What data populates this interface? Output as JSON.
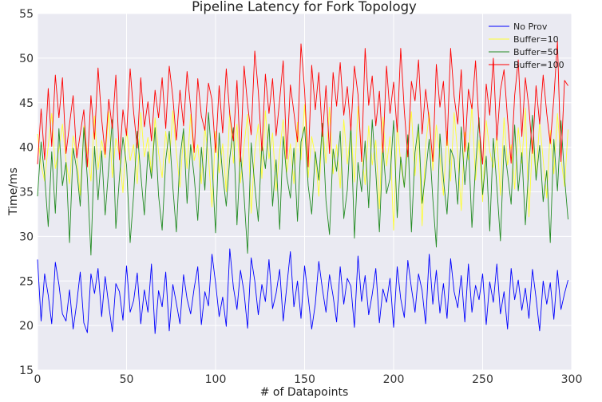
{
  "chart_data": {
    "type": "line",
    "title": "Pipeline Latency for Fork Topology",
    "xlabel": "# of Datapoints",
    "ylabel": "Time/ms",
    "xlim": [
      0,
      300
    ],
    "ylim": [
      15,
      55
    ],
    "xticks": [
      0,
      50,
      100,
      150,
      200,
      250,
      300
    ],
    "yticks": [
      15,
      20,
      25,
      30,
      35,
      40,
      45,
      50,
      55
    ],
    "grid": true,
    "legend_position": "top-right",
    "series": [
      {
        "name": "No Prov",
        "color": "#0000ff",
        "x_start": 0,
        "x_step": 2,
        "values": [
          27.4,
          20.5,
          25.8,
          23.4,
          20.2,
          27.1,
          24.6,
          21.3,
          20.5,
          24.0,
          19.6,
          22.5,
          26.0,
          20.3,
          19.2,
          25.8,
          23.6,
          26.4,
          21.0,
          25.5,
          22.3,
          19.3,
          24.7,
          23.8,
          20.6,
          26.7,
          21.5,
          22.8,
          25.9,
          20.2,
          24.0,
          21.5,
          26.9,
          19.1,
          23.9,
          22.1,
          26.0,
          19.4,
          24.6,
          22.5,
          20.2,
          25.7,
          23.0,
          21.3,
          24.2,
          26.6,
          20.1,
          23.8,
          22.2,
          28.0,
          24.8,
          21.0,
          23.2,
          19.9,
          28.6,
          24.3,
          21.8,
          26.2,
          23.7,
          19.7,
          27.6,
          25.0,
          21.2,
          24.6,
          22.7,
          27.4,
          21.9,
          23.6,
          26.3,
          20.5,
          24.4,
          28.3,
          22.1,
          25.0,
          20.8,
          26.7,
          23.2,
          19.6,
          22.4,
          27.2,
          24.1,
          21.5,
          25.7,
          23.3,
          20.4,
          26.6,
          22.4,
          25.3,
          24.4,
          19.8,
          27.8,
          22.7,
          25.6,
          21.2,
          23.5,
          26.4,
          20.3,
          24.1,
          22.6,
          25.3,
          19.8,
          26.6,
          23.0,
          20.9,
          27.3,
          24.2,
          21.5,
          25.8,
          23.9,
          20.2,
          28.0,
          22.4,
          26.2,
          21.4,
          24.7,
          20.8,
          27.5,
          23.8,
          22.0,
          25.6,
          20.4,
          26.9,
          21.5,
          24.5,
          22.9,
          25.8,
          20.1,
          24.9,
          22.6,
          26.9,
          21.3,
          23.8,
          19.6,
          26.4,
          22.9,
          25.1,
          21.7,
          24.2,
          20.8,
          26.3,
          23.1,
          19.4,
          25.0,
          22.4,
          24.8,
          20.7,
          26.2,
          21.8,
          23.6,
          25.1
        ]
      },
      {
        "name": "Buffer=10",
        "color": "#ffff33",
        "x_start": 0,
        "x_step": 2,
        "values": [
          41.5,
          38.0,
          36.2,
          40.2,
          43.8,
          37.6,
          39.8,
          42.6,
          38.4,
          35.9,
          41.3,
          39.1,
          34.6,
          42.4,
          39.5,
          36.2,
          43.5,
          37.5,
          40.8,
          38.8,
          44.0,
          36.6,
          41.0,
          39.1,
          34.9,
          42.1,
          38.5,
          40.3,
          35.9,
          43.9,
          38.9,
          41.1,
          37.1,
          43.3,
          39.4,
          36.6,
          41.8,
          38.2,
          44.1,
          39.4,
          35.5,
          41.6,
          37.6,
          43.7,
          38.5,
          40.3,
          35.9,
          42.3,
          38.9,
          33.3,
          41.8,
          37.1,
          40.4,
          35.0,
          44.1,
          38.2,
          42.6,
          36.0,
          40.2,
          43.7,
          32.6,
          39.5,
          42.6,
          36.5,
          44.1,
          38.7,
          41.6,
          35.1,
          39.5,
          43.1,
          37.2,
          40.4,
          35.9,
          42.8,
          38.6,
          44.8,
          36.6,
          41.2,
          39.0,
          34.5,
          42.4,
          38.2,
          44.5,
          37.0,
          40.3,
          35.4,
          43.1,
          38.1,
          42.1,
          36.1,
          44.6,
          39.3,
          35.8,
          42.4,
          38.0,
          40.8,
          33.1,
          43.4,
          37.9,
          41.2,
          30.7,
          42.6,
          38.2,
          35.5,
          40.3,
          44.0,
          36.8,
          41.9,
          31.2,
          40.2,
          43.9,
          37.4,
          42.5,
          39.0,
          34.6,
          41.8,
          36.2,
          43.9,
          39.2,
          32.9,
          41.7,
          38.6,
          44.8,
          36.3,
          40.8,
          33.9,
          43.0,
          39.6,
          37.7,
          41.5,
          34.6,
          43.3,
          38.0,
          40.3,
          35.3,
          42.2,
          38.2,
          44.4,
          32.2,
          40.8,
          36.7,
          42.9,
          38.6,
          34.3,
          41.9,
          37.0,
          43.8,
          38.8,
          35.6,
          42.0
        ]
      },
      {
        "name": "Buffer=50",
        "color": "#228b22",
        "x_start": 0,
        "x_step": 2,
        "values": [
          34.5,
          40.6,
          36.8,
          31.1,
          39.5,
          32.6,
          42.1,
          35.7,
          38.3,
          29.3,
          39.9,
          37.5,
          33.4,
          42.2,
          36.5,
          27.9,
          40.1,
          34.1,
          39.6,
          32.4,
          37.7,
          43.1,
          30.9,
          36.6,
          41.1,
          38.0,
          29.3,
          34.7,
          41.8,
          37.0,
          32.4,
          39.5,
          36.5,
          42.2,
          34.6,
          30.7,
          38.6,
          41.8,
          35.5,
          30.5,
          38.8,
          42.1,
          33.7,
          40.3,
          36.7,
          31.8,
          40.0,
          35.2,
          43.9,
          38.4,
          30.4,
          41.6,
          36.9,
          33.4,
          38.8,
          42.2,
          31.3,
          39.4,
          34.5,
          28.1,
          40.5,
          35.7,
          31.7,
          40.4,
          37.6,
          42.6,
          33.4,
          38.6,
          30.8,
          41.2,
          36.7,
          34.3,
          39.9,
          31.7,
          40.6,
          42.3,
          35.7,
          32.5,
          39.5,
          36.3,
          42.7,
          34.0,
          30.2,
          39.8,
          37.3,
          41.8,
          32.0,
          35.2,
          42.5,
          29.8,
          38.3,
          35.0,
          40.7,
          33.2,
          43.1,
          37.2,
          30.5,
          40.0,
          34.8,
          36.5,
          43.0,
          32.1,
          38.9,
          35.5,
          41.4,
          30.5,
          39.4,
          42.6,
          33.7,
          37.1,
          40.9,
          34.2,
          28.8,
          41.5,
          36.4,
          32.5,
          39.8,
          38.7,
          33.6,
          42.3,
          35.8,
          40.5,
          31.0,
          37.8,
          43.3,
          34.7,
          39.0,
          30.6,
          41.0,
          35.6,
          29.5,
          40.2,
          37.1,
          33.6,
          42.5,
          35.1,
          39.4,
          31.3,
          38.0,
          43.6,
          36.3,
          40.2,
          33.9,
          37.4,
          29.3,
          40.9,
          35.1,
          43.0,
          36.6,
          31.9
        ]
      },
      {
        "name": "Buffer=100",
        "color": "#ff0000",
        "x_start": 0,
        "x_step": 2,
        "values": [
          38.1,
          44.3,
          38.6,
          46.6,
          40.1,
          48.1,
          43.3,
          47.8,
          39.3,
          42.6,
          45.8,
          38.8,
          41.5,
          44.2,
          37.8,
          45.8,
          40.9,
          48.9,
          43.2,
          39.2,
          45.4,
          42.1,
          48.1,
          38.6,
          44.2,
          41.3,
          48.8,
          43.9,
          39.9,
          47.8,
          42.3,
          45.1,
          40.7,
          46.4,
          43.3,
          47.8,
          42.1,
          49.1,
          45.6,
          40.8,
          46.4,
          42.4,
          48.5,
          44.4,
          39.4,
          47.7,
          43.5,
          41.9,
          47.2,
          45.3,
          39.4,
          46.9,
          41.6,
          48.8,
          43.7,
          40.7,
          47.5,
          38.4,
          49.1,
          44.8,
          41.4,
          50.8,
          46.3,
          39.6,
          48.2,
          43.8,
          47.7,
          41.3,
          45.3,
          49.7,
          38.7,
          47.0,
          43.9,
          40.6,
          51.6,
          46.4,
          37.8,
          49.2,
          44.2,
          48.4,
          41.2,
          46.9,
          39.3,
          48.4,
          44.6,
          49.5,
          43.6,
          46.8,
          41.9,
          49.1,
          45.9,
          38.4,
          51.1,
          44.7,
          48.0,
          42.4,
          46.3,
          39.4,
          49.1,
          43.8,
          47.3,
          41.7,
          51.1,
          44.1,
          38.9,
          47.4,
          45.2,
          49.8,
          41.5,
          46.5,
          43.0,
          38.4,
          49.3,
          44.5,
          47.4,
          40.2,
          51.1,
          45.7,
          42.6,
          48.7,
          39.5,
          46.5,
          44.3,
          49.7,
          42.4,
          38.1,
          47.1,
          43.6,
          50.0,
          40.8,
          46.4,
          48.7,
          43.2,
          38.2,
          45.8,
          49.8,
          41.2,
          47.8,
          44.4,
          39.3,
          46.9,
          42.6,
          48.1,
          43.8,
          40.4,
          45.5,
          51.9,
          38.4,
          47.5,
          46.9
        ]
      }
    ]
  }
}
